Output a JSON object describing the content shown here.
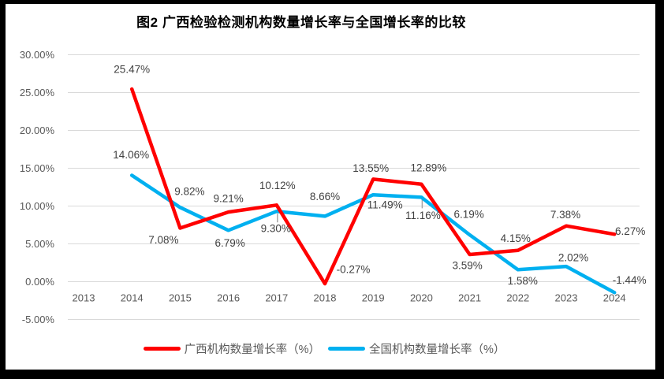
{
  "chart_data": {
    "type": "line",
    "title": "图2 广西检验检测机构数量增长率与全国增长率的比较",
    "categories": [
      "2013",
      "2014",
      "2015",
      "2016",
      "2017",
      "2018",
      "2019",
      "2020",
      "2021",
      "2022",
      "2023",
      "2024"
    ],
    "xlabel": "",
    "ylabel": "",
    "y_axis": {
      "min": -5,
      "max": 30,
      "step": 5,
      "tick_labels": [
        "30.00%",
        "25.00%",
        "20.00%",
        "15.00%",
        "10.00%",
        "5.00%",
        "0.00%",
        "-5.00%"
      ]
    },
    "grid": true,
    "legend_position": "bottom",
    "series": [
      {
        "id": "guangxi",
        "name": "广西机构数量增长率（%）",
        "color": "#FF0000",
        "values": [
          null,
          25.47,
          7.08,
          9.21,
          10.12,
          -0.27,
          13.55,
          12.89,
          3.59,
          4.15,
          7.38,
          6.27
        ],
        "labels": [
          null,
          "25.47%",
          "7.08%",
          "9.21%",
          "10.12%",
          "-0.27%",
          "13.55%",
          "12.89%",
          "3.59%",
          "4.15%",
          "7.38%",
          "6.27%"
        ],
        "label_offsets": [
          null,
          [
            0,
            -25
          ],
          [
            -21,
            15
          ],
          [
            0,
            -17
          ],
          [
            1,
            -25
          ],
          [
            36,
            -18
          ],
          [
            -3,
            -14
          ],
          [
            9,
            -21
          ],
          [
            -3,
            14
          ],
          [
            -3,
            -15
          ],
          [
            -1,
            -14
          ],
          [
            20,
            -4
          ]
        ],
        "leader_indices": []
      },
      {
        "id": "national",
        "name": "全国机构数量增长率（%）",
        "color": "#00B0F0",
        "values": [
          null,
          14.06,
          9.82,
          6.79,
          9.3,
          8.66,
          11.49,
          11.16,
          6.19,
          1.58,
          2.02,
          -1.44
        ],
        "labels": [
          null,
          "14.06%",
          "9.82%",
          "6.79%",
          "9.30%",
          "8.66%",
          "11.49%",
          "11.16%",
          "6.19%",
          "1.58%",
          "2.02%",
          "-1.44%"
        ],
        "label_offsets": [
          null,
          [
            -1,
            -26
          ],
          [
            12,
            -20
          ],
          [
            2,
            16
          ],
          [
            -1,
            22
          ],
          [
            0,
            -25
          ],
          [
            15,
            13
          ],
          [
            2,
            23
          ],
          [
            -1,
            -26
          ],
          [
            6,
            14
          ],
          [
            9,
            -11
          ],
          [
            19,
            -16
          ]
        ],
        "leader_indices": [
          4,
          7
        ]
      }
    ],
    "colors": {
      "gridline": "#D9D9D9",
      "axis_text": "#595959",
      "data_label_text": "#404040",
      "leader": "#A6A6A6",
      "frame": "#000000",
      "background": "#FFFFFF"
    }
  }
}
